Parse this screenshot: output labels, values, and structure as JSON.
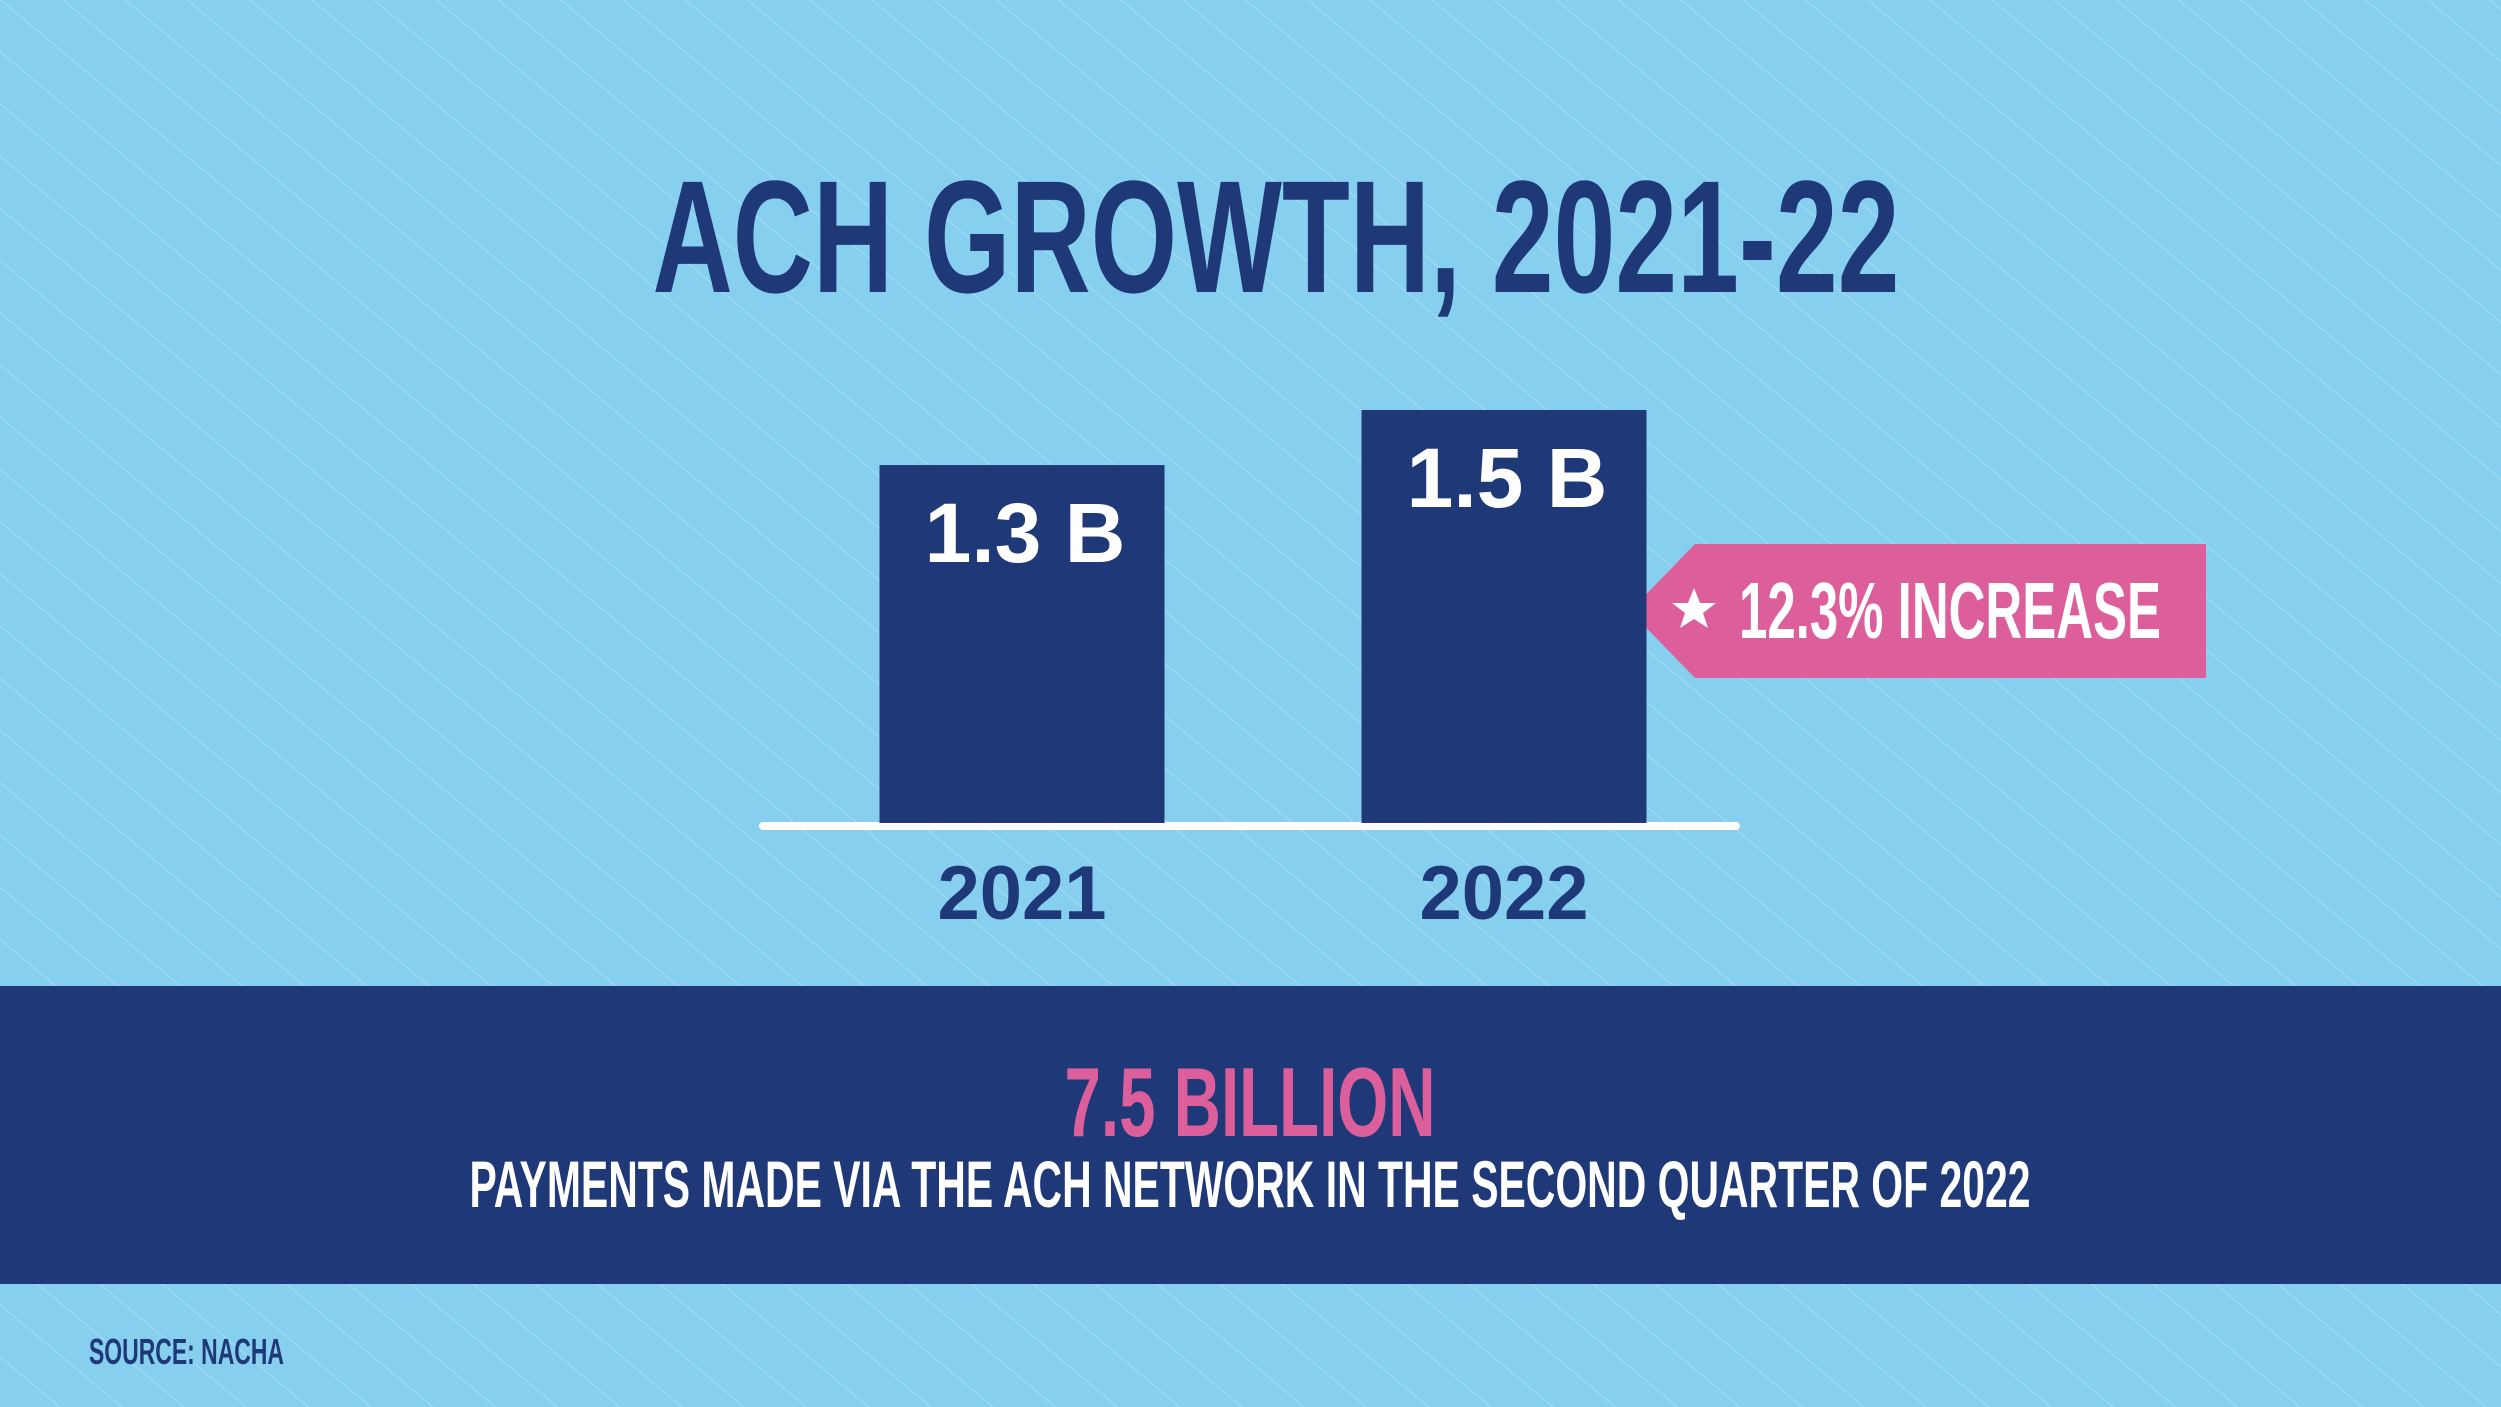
{
  "chart_data": {
    "type": "bar",
    "title": "ACH GROWTH, 2021-22",
    "categories": [
      "2021",
      "2022"
    ],
    "values": [
      1.3,
      1.5
    ],
    "value_labels": [
      "1.3 B",
      "1.5 B"
    ],
    "color": "#1f3877",
    "annotation": "12.3% INCREASE",
    "highlight": "7.5 BILLION",
    "highlight_text": "PAYMENTS MADE VIA THE ACH NETWORK IN THE SECOND QUARTER OF 2022",
    "source": "SOURCE:  NACHA"
  }
}
